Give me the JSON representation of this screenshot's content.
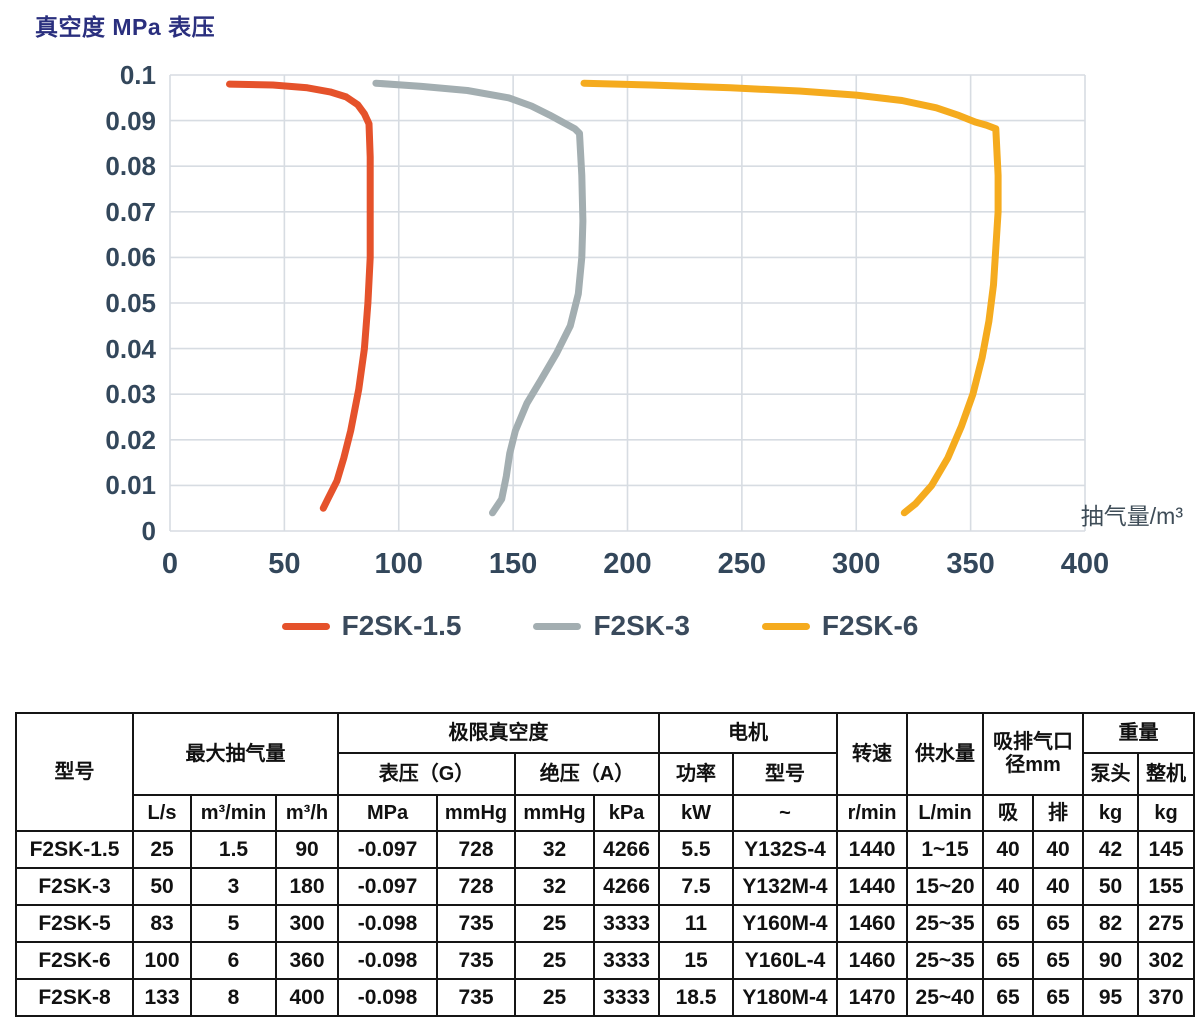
{
  "title": "真空度 MPa 表压",
  "colors": {
    "title": "#2A2F7E",
    "axis_label": "#33475B",
    "grid": "#D7DCE2",
    "table_border": "#151515",
    "series_red": "#E5522B",
    "series_gray": "#A3AEB1",
    "series_yellow": "#F5AB1E"
  },
  "chart_data": {
    "type": "line",
    "title": "真空度 MPa 表压",
    "xlabel": "抽气量/m³",
    "ylabel": "真空度 MPa 表压",
    "xlim": [
      0,
      400
    ],
    "ylim": [
      0,
      0.1
    ],
    "x_ticks": [
      0,
      50,
      100,
      150,
      200,
      250,
      300,
      350,
      400
    ],
    "y_ticks": [
      0,
      0.01,
      0.02,
      0.03,
      0.04,
      0.05,
      0.06,
      0.07,
      0.08,
      0.09,
      0.1
    ],
    "y_tick_labels": [
      "0",
      "0.01",
      "0.02",
      "0.03",
      "0.04",
      "0.05",
      "0.06",
      "0.07",
      "0.08",
      "0.09",
      "0.1"
    ],
    "x_tick_labels": [
      "0",
      "50",
      "100",
      "150",
      "200",
      "250",
      "300",
      "350",
      "400"
    ],
    "grid": true,
    "legend_position": "bottom",
    "series": [
      {
        "name": "F2SK-1.5",
        "color": "#E5522B",
        "points": [
          [
            26,
            0.098
          ],
          [
            45,
            0.0978
          ],
          [
            60,
            0.0972
          ],
          [
            70,
            0.0963
          ],
          [
            77,
            0.0952
          ],
          [
            82,
            0.0935
          ],
          [
            85,
            0.0915
          ],
          [
            87,
            0.0893
          ],
          [
            87.5,
            0.082
          ],
          [
            87.5,
            0.07
          ],
          [
            87.5,
            0.06
          ],
          [
            86.5,
            0.05
          ],
          [
            85,
            0.04
          ],
          [
            82.5,
            0.031
          ],
          [
            79,
            0.022
          ],
          [
            76,
            0.016
          ],
          [
            73,
            0.011
          ],
          [
            69,
            0.007
          ],
          [
            67,
            0.005
          ]
        ]
      },
      {
        "name": "F2SK-3",
        "color": "#A3AEB1",
        "points": [
          [
            90,
            0.0982
          ],
          [
            110,
            0.0975
          ],
          [
            130,
            0.0966
          ],
          [
            148,
            0.095
          ],
          [
            158,
            0.0932
          ],
          [
            166,
            0.0912
          ],
          [
            173,
            0.0893
          ],
          [
            177,
            0.0882
          ],
          [
            179,
            0.0872
          ],
          [
            180,
            0.078
          ],
          [
            180.5,
            0.068
          ],
          [
            180,
            0.06
          ],
          [
            178.5,
            0.052
          ],
          [
            175,
            0.045
          ],
          [
            169,
            0.039
          ],
          [
            162,
            0.033
          ],
          [
            156,
            0.028
          ],
          [
            151,
            0.022
          ],
          [
            148.5,
            0.017
          ],
          [
            147,
            0.012
          ],
          [
            145,
            0.007
          ],
          [
            141,
            0.004
          ]
        ]
      },
      {
        "name": "F2SK-6",
        "color": "#F5AB1E",
        "points": [
          [
            181,
            0.0982
          ],
          [
            210,
            0.0978
          ],
          [
            245,
            0.0972
          ],
          [
            275,
            0.0965
          ],
          [
            300,
            0.0956
          ],
          [
            320,
            0.0944
          ],
          [
            335,
            0.0928
          ],
          [
            345,
            0.0911
          ],
          [
            352,
            0.0897
          ],
          [
            357,
            0.089
          ],
          [
            361,
            0.0882
          ],
          [
            362,
            0.078
          ],
          [
            362,
            0.07
          ],
          [
            361,
            0.062
          ],
          [
            360,
            0.054
          ],
          [
            358,
            0.046
          ],
          [
            355,
            0.038
          ],
          [
            351,
            0.03
          ],
          [
            346,
            0.023
          ],
          [
            340,
            0.016
          ],
          [
            333,
            0.01
          ],
          [
            326,
            0.006
          ],
          [
            321,
            0.004
          ]
        ]
      }
    ]
  },
  "table": {
    "header": {
      "model": "型号",
      "max_capacity": {
        "label": "最大抽气量",
        "units": [
          "L/s",
          "m³/min",
          "m³/h"
        ]
      },
      "ultimate_vacuum": {
        "label": "极限真空度",
        "gauge": {
          "label": "表压（G）",
          "units": [
            "MPa",
            "mmHg"
          ]
        },
        "absolute": {
          "label": "绝压（A）",
          "units": [
            "mmHg",
            "kPa"
          ]
        }
      },
      "motor": {
        "label": "电机",
        "power": {
          "label": "功率",
          "unit": "kW"
        },
        "model": {
          "label": "型号",
          "unit": "~"
        }
      },
      "speed": {
        "label": "转速",
        "unit": "r/min"
      },
      "water_supply": {
        "label": "供水量",
        "unit": "L/min"
      },
      "ports": {
        "label": "吸排气口径mm",
        "suction": "吸",
        "discharge": "排"
      },
      "weight": {
        "label": "重量",
        "pump_head": {
          "label": "泵头",
          "unit": "kg"
        },
        "complete": {
          "label": "整机",
          "unit": "kg"
        }
      }
    },
    "rows": [
      [
        "F2SK-1.5",
        "25",
        "1.5",
        "90",
        "-0.097",
        "728",
        "32",
        "4266",
        "5.5",
        "Y132S-4",
        "1440",
        "1~15",
        "40",
        "40",
        "42",
        "145"
      ],
      [
        "F2SK-3",
        "50",
        "3",
        "180",
        "-0.097",
        "728",
        "32",
        "4266",
        "7.5",
        "Y132M-4",
        "1440",
        "15~20",
        "40",
        "40",
        "50",
        "155"
      ],
      [
        "F2SK-5",
        "83",
        "5",
        "300",
        "-0.098",
        "735",
        "25",
        "3333",
        "11",
        "Y160M-4",
        "1460",
        "25~35",
        "65",
        "65",
        "82",
        "275"
      ],
      [
        "F2SK-6",
        "100",
        "6",
        "360",
        "-0.098",
        "735",
        "25",
        "3333",
        "15",
        "Y160L-4",
        "1460",
        "25~35",
        "65",
        "65",
        "90",
        "302"
      ],
      [
        "F2SK-8",
        "133",
        "8",
        "400",
        "-0.098",
        "735",
        "25",
        "3333",
        "18.5",
        "Y180M-4",
        "1470",
        "25~40",
        "65",
        "65",
        "95",
        "370"
      ]
    ]
  }
}
